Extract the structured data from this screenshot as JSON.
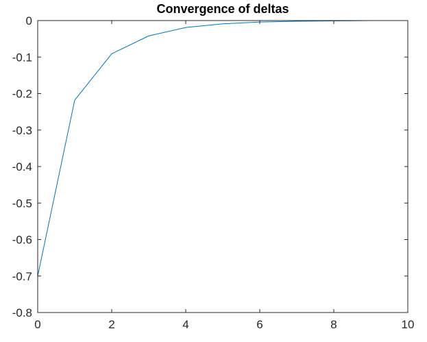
{
  "chart_data": {
    "type": "line",
    "title": "Convergence of deltas",
    "xlabel": "",
    "ylabel": "",
    "xlim": [
      0,
      10
    ],
    "ylim": [
      -0.8,
      0
    ],
    "xticks": [
      0,
      2,
      4,
      6,
      8,
      10
    ],
    "yticks": [
      0,
      -0.1,
      -0.2,
      -0.3,
      -0.4,
      -0.5,
      -0.6,
      -0.7,
      -0.8
    ],
    "xtick_labels": [
      "0",
      "2",
      "4",
      "6",
      "8",
      "10"
    ],
    "ytick_labels": [
      "0",
      "-0.1",
      "-0.2",
      "-0.3",
      "-0.4",
      "-0.5",
      "-0.6",
      "-0.7",
      "-0.8"
    ],
    "grid": false,
    "box": true,
    "series": [
      {
        "color": "#0072BD",
        "x": [
          0,
          1,
          2,
          3,
          4,
          5,
          6,
          7,
          8,
          9
        ],
        "y": [
          -0.7,
          -0.218,
          -0.091,
          -0.042,
          -0.019,
          -0.009,
          -0.004,
          -0.002,
          -0.001,
          0
        ]
      }
    ]
  }
}
